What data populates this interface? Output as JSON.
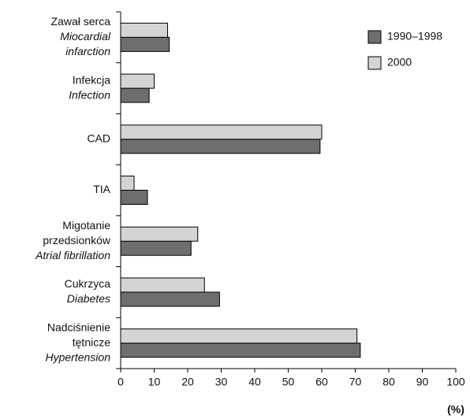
{
  "chart_data": {
    "type": "barh",
    "categories": [
      {
        "pl": [
          "Zawał serca"
        ],
        "en": [
          "Miocardial",
          "infarction"
        ]
      },
      {
        "pl": [
          "Infekcja"
        ],
        "en": [
          "Infection"
        ]
      },
      {
        "pl": [
          "CAD"
        ],
        "en": []
      },
      {
        "pl": [
          "TIA"
        ],
        "en": []
      },
      {
        "pl": [
          "Migotanie",
          "przedsionków"
        ],
        "en": [
          "Atrial fibrillation"
        ]
      },
      {
        "pl": [
          "Cukrzyca"
        ],
        "en": [
          "Diabetes"
        ]
      },
      {
        "pl": [
          "Nadciśnienie",
          "tętnicze"
        ],
        "en": [
          "Hypertension"
        ]
      }
    ],
    "series": [
      {
        "name": "1990–1998",
        "color": "#6e6e6e",
        "values": [
          14.5,
          8.5,
          59.5,
          8,
          21,
          29.5,
          71.5
        ]
      },
      {
        "name": "2000",
        "color": "#d4d4d4",
        "values": [
          14,
          10,
          60,
          4,
          23,
          25,
          70.5
        ]
      }
    ],
    "xlabel": "(%)",
    "xlim": [
      0,
      100
    ],
    "xticks": [
      0,
      10,
      20,
      30,
      40,
      50,
      60,
      70,
      80,
      90,
      100
    ],
    "legend": "upper right"
  }
}
